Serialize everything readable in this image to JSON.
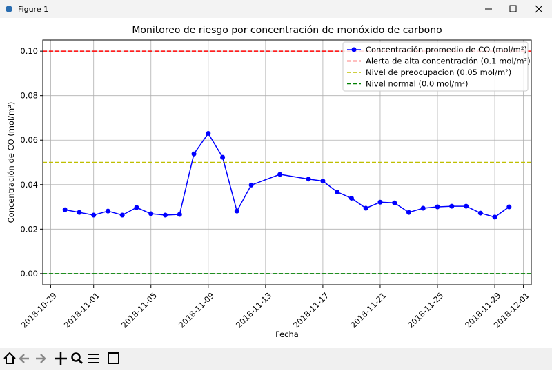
{
  "window": {
    "title": "Figure 1"
  },
  "chart_data": {
    "type": "line",
    "title": "Monitoreo de riesgo por concentración de monóxido de carbono",
    "xlabel": "Fecha",
    "ylabel": "Concentración de CO (mol/m²)",
    "x": [
      "2018-10-30",
      "2018-10-31",
      "2018-11-01",
      "2018-11-02",
      "2018-11-03",
      "2018-11-04",
      "2018-11-05",
      "2018-11-06",
      "2018-11-07",
      "2018-11-08",
      "2018-11-09",
      "2018-11-10",
      "2018-11-11",
      "2018-11-12",
      "2018-11-14",
      "2018-11-16",
      "2018-11-17",
      "2018-11-18",
      "2018-11-19",
      "2018-11-20",
      "2018-11-21",
      "2018-11-22",
      "2018-11-23",
      "2018-11-24",
      "2018-11-25",
      "2018-11-26",
      "2018-11-27",
      "2018-11-28",
      "2018-11-29",
      "2018-11-30"
    ],
    "series": [
      {
        "name": "Concentración promedio de CO (mol/m²)",
        "color": "#0000ff",
        "values": [
          0.0287,
          0.0275,
          0.0263,
          0.0281,
          0.0263,
          0.0297,
          0.0269,
          0.0263,
          0.0266,
          0.0538,
          0.063,
          0.0523,
          0.0281,
          0.0398,
          0.0446,
          0.0425,
          0.0416,
          0.0367,
          0.0339,
          0.0294,
          0.0321,
          0.0318,
          0.0275,
          0.0294,
          0.03,
          0.0303,
          0.0303,
          0.0272,
          0.0254,
          0.03
        ]
      }
    ],
    "hlines": [
      {
        "name": "Alerta de alta concentración (0.1 mol/m²)",
        "value": 0.1,
        "color": "#ff0000"
      },
      {
        "name": "Nivel de preocupacion (0.05 mol/m²)",
        "value": 0.05,
        "color": "#bfbf00"
      },
      {
        "name": "Nivel normal (0.0 mol/m²)",
        "value": 0.0,
        "color": "#008000"
      }
    ],
    "xlim": [
      "2018-10-28T10:48",
      "2018-12-01T13:12"
    ],
    "xticks": [
      "2018-10-29",
      "2018-11-01",
      "2018-11-05",
      "2018-11-09",
      "2018-11-13",
      "2018-11-17",
      "2018-11-21",
      "2018-11-25",
      "2018-11-29",
      "2018-12-01"
    ],
    "ylim": [
      -0.005,
      0.105
    ],
    "yticks": [
      {
        "value": 0,
        "label": "0.00"
      },
      {
        "value": 0.02,
        "label": "0.02"
      },
      {
        "value": 0.04,
        "label": "0.04"
      },
      {
        "value": 0.06,
        "label": "0.06"
      },
      {
        "value": 0.08,
        "label": "0.08"
      },
      {
        "value": 0.1,
        "label": "0.10"
      }
    ],
    "grid": true,
    "legend": "upper right"
  }
}
